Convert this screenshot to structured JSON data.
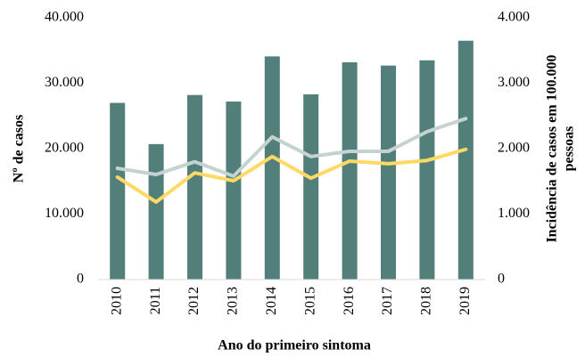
{
  "chart_data": {
    "type": "bar",
    "xlabel": "Ano do primeiro sintoma",
    "ylabel": "Nº de casos",
    "y2label": [
      "Incidência de casos em 100.000",
      "pessoas"
    ],
    "categories": [
      "2010",
      "2011",
      "2012",
      "2013",
      "2014",
      "2015",
      "2016",
      "2017",
      "2018",
      "2019"
    ],
    "series": [
      {
        "type": "bar",
        "color": "#537f7a",
        "values": [
          27000,
          20700,
          28200,
          27200,
          34100,
          28300,
          33200,
          32700,
          33500,
          36500
        ]
      },
      {
        "type": "line",
        "axis": "y2",
        "color": "#c5d3d0",
        "values": [
          1700,
          1605,
          1800,
          1580,
          2180,
          1880,
          1960,
          1960,
          2260,
          2460
        ]
      },
      {
        "type": "line",
        "axis": "y2",
        "color": "#ffd966",
        "values": [
          1565,
          1185,
          1630,
          1510,
          1880,
          1550,
          1810,
          1770,
          1820,
          1990
        ]
      }
    ],
    "ylim": [
      0,
      40000
    ],
    "yticks": [
      0,
      {
        "value": 10000,
        "label": "10.000"
      },
      {
        "value": 20000,
        "label": "20.000"
      },
      {
        "value": 30000,
        "label": "30.000"
      },
      {
        "value": 40000,
        "label": "40.000"
      }
    ],
    "y2lim": [
      0,
      4000
    ],
    "y2ticks": [
      0,
      {
        "value": 1000,
        "label": "1.000"
      },
      {
        "value": 2000,
        "label": "2.000"
      },
      {
        "value": 3000,
        "label": "3.000"
      },
      {
        "value": 4000,
        "label": "4.000"
      }
    ],
    "grid": false
  }
}
